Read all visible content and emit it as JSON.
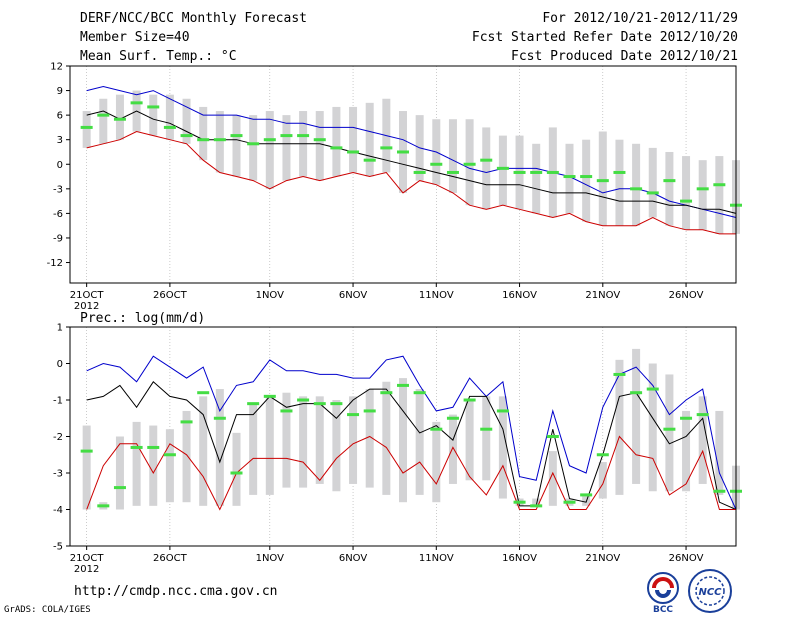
{
  "header": {
    "title": "DERF/NCC/BCC Monthly Forecast",
    "member_size": "Member Size=40",
    "var1_label": "Mean Surf. Temp.: °C",
    "period": "For 2012/10/21-2012/11/29",
    "started": "Fcst Started Refer Date 2012/10/20",
    "produced": "Fcst Produced Date 2012/10/21"
  },
  "footer": {
    "url": "http://cmdp.ncc.cma.gov.cn",
    "grads": "GrADS: COLA/IGES",
    "logo1_text": "BCC",
    "logo2_text": "NCC"
  },
  "colors": {
    "box": "#d3d3d5",
    "ens_max": "#0000cc",
    "ens_mean": "#000000",
    "ens_min": "#cc0000",
    "obs": "#44dd44",
    "grid": "#aaaaaa"
  },
  "x_ticks": [
    "21OCT",
    "26OCT",
    "1NOV",
    "6NOV",
    "11NOV",
    "16NOV",
    "21NOV",
    "26NOV"
  ],
  "x_tick_days": [
    1,
    6,
    12,
    17,
    22,
    27,
    32,
    37
  ],
  "x_year": "2012",
  "chart_data": [
    {
      "type": "line",
      "title": "Mean Surf. Temp.: °C",
      "ylabel": "°C",
      "ylim": [
        -14.5,
        12
      ],
      "yticks": [
        -12,
        -9,
        -6,
        -3,
        0,
        3,
        6,
        9,
        12
      ],
      "ytick_labels": [
        "-12",
        "-9",
        "-6",
        "-3",
        "0",
        "3",
        "6",
        "9",
        "12"
      ],
      "xlim": [
        0,
        40
      ],
      "x": [
        1,
        2,
        3,
        4,
        5,
        6,
        7,
        8,
        9,
        10,
        11,
        12,
        13,
        14,
        15,
        16,
        17,
        18,
        19,
        20,
        21,
        22,
        23,
        24,
        25,
        26,
        27,
        28,
        29,
        30,
        31,
        32,
        33,
        34,
        35,
        36,
        37,
        38,
        39,
        40
      ],
      "box_high": [
        6.5,
        8.0,
        8.5,
        9.0,
        8.5,
        8.5,
        8.0,
        7.0,
        6.5,
        6.0,
        6.0,
        6.5,
        6.0,
        6.5,
        6.5,
        7.0,
        7.0,
        7.5,
        8.0,
        6.5,
        6.0,
        5.5,
        5.5,
        5.5,
        4.5,
        3.5,
        3.5,
        2.5,
        4.5,
        2.5,
        3.0,
        4.0,
        3.0,
        2.5,
        2.0,
        1.5,
        1.0,
        0.5,
        1.0,
        0.5
      ],
      "box_low": [
        2.0,
        2.5,
        3.0,
        4.0,
        3.5,
        3.0,
        2.5,
        0.5,
        -1.0,
        -1.5,
        -2.0,
        -3.0,
        -2.0,
        -1.5,
        -2.0,
        -1.5,
        -1.0,
        -1.5,
        -1.0,
        -3.5,
        -2.0,
        -2.5,
        -3.5,
        -5.0,
        -5.5,
        -5.0,
        -5.5,
        -6.0,
        -6.5,
        -6.0,
        -7.0,
        -7.5,
        -7.5,
        -7.5,
        -6.5,
        -7.5,
        -8.0,
        -8.0,
        -8.5,
        -8.5
      ],
      "series": [
        {
          "name": "Ensemble max",
          "color": "#0000cc",
          "values": [
            9.0,
            9.5,
            9.0,
            8.5,
            9.0,
            8.0,
            7.0,
            6.0,
            6.0,
            6.0,
            5.5,
            5.5,
            5.0,
            5.0,
            4.5,
            4.5,
            4.5,
            4.0,
            3.5,
            3.0,
            2.0,
            1.5,
            0.5,
            -0.5,
            -1.0,
            -0.5,
            -0.5,
            -0.5,
            -1.0,
            -1.5,
            -2.5,
            -3.5,
            -3.0,
            -3.0,
            -3.5,
            -4.5,
            -5.0,
            -5.5,
            -6.0,
            -6.5
          ]
        },
        {
          "name": "Ensemble mean",
          "color": "#000000",
          "values": [
            6.0,
            6.5,
            5.5,
            6.5,
            5.5,
            5.0,
            4.0,
            3.0,
            3.0,
            3.0,
            2.5,
            2.5,
            2.5,
            2.5,
            2.5,
            2.0,
            1.5,
            1.0,
            0.5,
            0.0,
            -0.5,
            -1.0,
            -1.5,
            -2.0,
            -2.5,
            -2.5,
            -2.5,
            -3.0,
            -3.5,
            -3.5,
            -3.5,
            -4.0,
            -4.5,
            -4.5,
            -4.5,
            -5.0,
            -5.0,
            -5.5,
            -5.5,
            -6.0
          ]
        },
        {
          "name": "Ensemble min",
          "color": "#cc0000",
          "values": [
            2.0,
            2.5,
            3.0,
            4.0,
            3.5,
            3.0,
            2.5,
            0.5,
            -1.0,
            -1.5,
            -2.0,
            -3.0,
            -2.0,
            -1.5,
            -2.0,
            -1.5,
            -1.0,
            -1.5,
            -1.0,
            -3.5,
            -2.0,
            -2.5,
            -3.5,
            -5.0,
            -5.5,
            -5.0,
            -5.5,
            -6.0,
            -6.5,
            -6.0,
            -7.0,
            -7.5,
            -7.5,
            -7.5,
            -6.5,
            -7.5,
            -8.0,
            -8.0,
            -8.5,
            -8.5
          ]
        },
        {
          "name": "Observed",
          "color": "#44dd44",
          "values": [
            4.5,
            6.0,
            5.5,
            7.5,
            7.0,
            4.5,
            3.5,
            3.0,
            3.0,
            3.5,
            2.5,
            3.0,
            3.5,
            3.5,
            3.0,
            2.0,
            1.5,
            0.5,
            2.0,
            1.5,
            -1.0,
            0.0,
            -1.0,
            0.0,
            0.5,
            -0.5,
            -1.0,
            -1.0,
            -1.0,
            -1.5,
            -1.5,
            -2.0,
            -1.0,
            -3.0,
            -3.5,
            -2.0,
            -4.5,
            -3.0,
            -2.5,
            -5.0
          ]
        }
      ]
    },
    {
      "type": "line",
      "title": "Prec.: log(mm/d)",
      "ylabel": "log(mm/d)",
      "ylim": [
        -5,
        1
      ],
      "yticks": [
        -5,
        -4,
        -3,
        -2,
        -1,
        0,
        1
      ],
      "ytick_labels": [
        "-5",
        "-4",
        "-3",
        "-2",
        "-1",
        "0",
        "1"
      ],
      "xlim": [
        0,
        40
      ],
      "x": [
        1,
        2,
        3,
        4,
        5,
        6,
        7,
        8,
        9,
        10,
        11,
        12,
        13,
        14,
        15,
        16,
        17,
        18,
        19,
        20,
        21,
        22,
        23,
        24,
        25,
        26,
        27,
        28,
        29,
        30,
        31,
        32,
        33,
        34,
        35,
        36,
        37,
        38,
        39,
        40
      ],
      "box_high": [
        -1.7,
        -3.8,
        -2.0,
        -1.6,
        -1.7,
        -1.8,
        -1.3,
        -0.9,
        -0.7,
        -1.9,
        -1.1,
        -0.9,
        -0.8,
        -0.9,
        -0.9,
        -1.0,
        -0.9,
        -0.7,
        -0.5,
        -0.4,
        -0.7,
        -1.6,
        -1.4,
        -1.0,
        -0.9,
        -0.9,
        -3.7,
        -3.7,
        -2.4,
        -3.7,
        -3.6,
        -2.7,
        0.1,
        0.4,
        0.0,
        -0.3,
        -1.3,
        -0.9,
        -1.3,
        -2.8
      ],
      "box_low": [
        -4.0,
        -4.0,
        -4.0,
        -3.9,
        -3.9,
        -3.8,
        -3.8,
        -3.9,
        -3.9,
        -3.9,
        -3.6,
        -3.6,
        -3.4,
        -3.4,
        -3.3,
        -3.5,
        -3.3,
        -3.4,
        -3.6,
        -3.8,
        -3.6,
        -3.8,
        -3.3,
        -3.2,
        -3.2,
        -3.7,
        -3.9,
        -3.9,
        -3.9,
        -3.9,
        -3.9,
        -3.7,
        -3.6,
        -3.3,
        -3.5,
        -3.5,
        -3.5,
        -3.3,
        -3.6,
        -4.0
      ],
      "series": [
        {
          "name": "Ensemble max",
          "color": "#0000cc",
          "values": [
            -0.2,
            0.0,
            -0.1,
            -0.5,
            0.2,
            -0.1,
            -0.4,
            -0.1,
            -1.3,
            -0.6,
            -0.5,
            0.1,
            -0.2,
            -0.2,
            -0.3,
            -0.3,
            -0.4,
            -0.4,
            0.1,
            0.2,
            -0.6,
            -1.3,
            -1.2,
            -0.4,
            -0.9,
            -0.5,
            -3.1,
            -3.2,
            -1.3,
            -2.8,
            -3.0,
            -1.2,
            -0.3,
            -0.1,
            -0.6,
            -1.4,
            -1.0,
            -0.7,
            -3.0,
            -4.0
          ]
        },
        {
          "name": "Ensemble mean",
          "color": "#000000",
          "values": [
            -1.0,
            -0.9,
            -0.6,
            -1.2,
            -0.5,
            -0.9,
            -1.0,
            -1.4,
            -2.7,
            -1.4,
            -1.4,
            -0.9,
            -1.2,
            -1.1,
            -1.1,
            -1.5,
            -1.0,
            -0.7,
            -0.7,
            -1.3,
            -1.9,
            -1.7,
            -2.1,
            -0.9,
            -0.9,
            -1.8,
            -3.9,
            -3.9,
            -1.8,
            -3.7,
            -3.8,
            -2.5,
            -0.9,
            -0.8,
            -1.5,
            -2.2,
            -2.0,
            -1.5,
            -3.8,
            -4.0
          ]
        },
        {
          "name": "Ensemble min",
          "color": "#cc0000",
          "values": [
            -4.0,
            -2.8,
            -2.2,
            -2.2,
            -3.0,
            -2.2,
            -2.5,
            -3.1,
            -4.0,
            -3.0,
            -2.6,
            -2.6,
            -2.6,
            -2.7,
            -3.2,
            -2.6,
            -2.2,
            -2.0,
            -2.3,
            -3.0,
            -2.7,
            -3.3,
            -2.3,
            -3.1,
            -3.6,
            -2.8,
            -4.0,
            -4.0,
            -3.0,
            -4.0,
            -4.0,
            -3.3,
            -2.0,
            -2.5,
            -2.6,
            -3.6,
            -3.3,
            -2.4,
            -4.0,
            -4.0
          ]
        },
        {
          "name": "Observed",
          "color": "#44dd44",
          "values": [
            -2.4,
            -3.9,
            -3.4,
            -2.3,
            -2.3,
            -2.5,
            -1.6,
            -0.8,
            -1.5,
            -3.0,
            -1.1,
            -0.9,
            -1.3,
            -1.0,
            -1.1,
            -1.1,
            -1.4,
            -1.3,
            -0.8,
            -0.6,
            -0.8,
            -1.8,
            -1.5,
            -1.0,
            -1.8,
            -1.3,
            -3.8,
            -3.9,
            -2.0,
            -3.8,
            -3.6,
            -2.5,
            -0.3,
            -0.8,
            -0.7,
            -1.8,
            -1.5,
            -1.4,
            -3.5,
            -3.5
          ]
        }
      ]
    }
  ]
}
